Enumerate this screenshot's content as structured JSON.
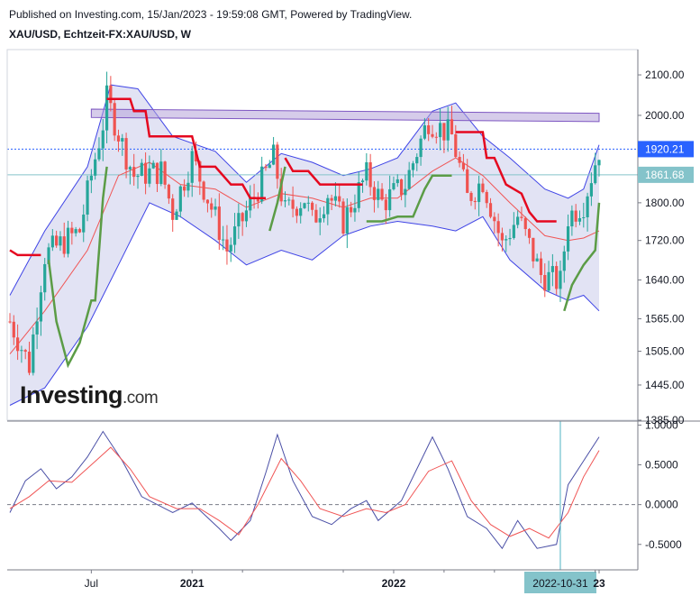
{
  "header": {
    "published": "Published on Investing.com, 15/Jan/2023 - 19:59:08 GMT, Powered by TradingView.",
    "symbol": "XAU/USD, Echtzeit-FX:XAU/USD, W"
  },
  "watermark": {
    "brand": "Investing",
    "domain": ".com"
  },
  "colors": {
    "bull": "#26a69a",
    "bear": "#ef5350",
    "supertrend_bear": "#e5081f",
    "supertrend_bull": "#5b9c46",
    "bb_band": "#3f44e6",
    "bb_fill": "#d8daf0",
    "ema": "#f05555",
    "osc_main": "#4a4fa6",
    "osc_signal": "#f05555",
    "channel": "#b4a2d9",
    "price_tag": "#2962ff",
    "line_tag": "#84c3ca"
  },
  "chart_data": [
    {
      "type": "candlestick",
      "title": "XAU/USD, Echtzeit-FX:XAU/USD, W",
      "scale": "log",
      "ylim": [
        1385,
        2165
      ],
      "y_ticks": [
        "2100.00",
        "2000.00",
        "1920.21",
        "1800.00",
        "1720.00",
        "1640.00",
        "1565.00",
        "1505.00",
        "1445.00",
        "1385.00"
      ],
      "x_ticks": [
        "Jul",
        "2021",
        "2022",
        "2022-10-31",
        "23"
      ],
      "x_start": "2020-02-10",
      "x_end": "2023-01-09",
      "ohlc_keypoints": [
        [
          "2020-02-10",
          1560
        ],
        [
          "2020-03-16",
          1480
        ],
        [
          "2020-04-13",
          1690
        ],
        [
          "2020-06-15",
          1740
        ],
        [
          "2020-07-27",
          1980
        ],
        [
          "2020-08-03",
          2040
        ],
        [
          "2020-08-31",
          1930
        ],
        [
          "2020-09-21",
          1860
        ],
        [
          "2020-11-09",
          1870
        ],
        [
          "2020-11-30",
          1780
        ],
        [
          "2021-01-04",
          1900
        ],
        [
          "2021-03-08",
          1700
        ],
        [
          "2021-04-12",
          1780
        ],
        [
          "2021-05-31",
          1900
        ],
        [
          "2021-06-21",
          1780
        ],
        [
          "2021-07-26",
          1810
        ],
        [
          "2021-08-09",
          1760
        ],
        [
          "2021-09-06",
          1820
        ],
        [
          "2021-10-04",
          1760
        ],
        [
          "2021-11-15",
          1860
        ],
        [
          "2021-12-13",
          1800
        ],
        [
          "2022-01-24",
          1840
        ],
        [
          "2022-03-07",
          1990
        ],
        [
          "2022-04-18",
          1950
        ],
        [
          "2022-05-16",
          1810
        ],
        [
          "2022-06-13",
          1850
        ],
        [
          "2022-07-18",
          1710
        ],
        [
          "2022-08-15",
          1770
        ],
        [
          "2022-09-26",
          1650
        ],
        [
          "2022-10-31",
          1635
        ],
        [
          "2022-11-14",
          1770
        ],
        [
          "2022-12-12",
          1800
        ],
        [
          "2023-01-09",
          1920
        ]
      ],
      "last_price": 1920.21,
      "horizontal_line": 1861.68,
      "channel": {
        "start": [
          "2020-07-06",
          2005
        ],
        "end": [
          "2023-01-09",
          1995
        ],
        "width": 20
      },
      "bollinger_upper": [
        [
          "2020-02-10",
          1610
        ],
        [
          "2020-04-13",
          1740
        ],
        [
          "2020-06-29",
          1880
        ],
        [
          "2020-08-10",
          2075
        ],
        [
          "2020-09-28",
          2065
        ],
        [
          "2020-11-30",
          1950
        ],
        [
          "2021-02-15",
          1915
        ],
        [
          "2021-04-12",
          1845
        ],
        [
          "2021-06-14",
          1910
        ],
        [
          "2021-08-09",
          1890
        ],
        [
          "2021-10-04",
          1860
        ],
        [
          "2021-11-22",
          1875
        ],
        [
          "2022-01-10",
          1900
        ],
        [
          "2022-03-14",
          2010
        ],
        [
          "2022-04-25",
          2030
        ],
        [
          "2022-06-13",
          1950
        ],
        [
          "2022-08-01",
          1900
        ],
        [
          "2022-10-03",
          1830
        ],
        [
          "2022-11-14",
          1810
        ],
        [
          "2022-12-12",
          1830
        ],
        [
          "2023-01-09",
          1930
        ]
      ],
      "bollinger_lower": [
        [
          "2020-02-10",
          1410
        ],
        [
          "2020-04-13",
          1440
        ],
        [
          "2020-06-29",
          1550
        ],
        [
          "2020-08-24",
          1670
        ],
        [
          "2020-10-19",
          1800
        ],
        [
          "2020-12-14",
          1770
        ],
        [
          "2021-02-15",
          1720
        ],
        [
          "2021-04-12",
          1670
        ],
        [
          "2021-06-14",
          1700
        ],
        [
          "2021-08-09",
          1680
        ],
        [
          "2021-10-04",
          1730
        ],
        [
          "2021-11-22",
          1750
        ],
        [
          "2022-01-10",
          1760
        ],
        [
          "2022-03-14",
          1750
        ],
        [
          "2022-04-25",
          1740
        ],
        [
          "2022-06-13",
          1770
        ],
        [
          "2022-08-01",
          1680
        ],
        [
          "2022-10-03",
          1620
        ],
        [
          "2022-11-14",
          1600
        ],
        [
          "2022-12-12",
          1610
        ],
        [
          "2023-01-09",
          1580
        ]
      ],
      "ema": [
        [
          "2020-02-10",
          1500
        ],
        [
          "2020-04-13",
          1580
        ],
        [
          "2020-06-29",
          1700
        ],
        [
          "2020-08-24",
          1860
        ],
        [
          "2020-10-19",
          1890
        ],
        [
          "2020-12-14",
          1840
        ],
        [
          "2021-02-15",
          1830
        ],
        [
          "2021-04-12",
          1790
        ],
        [
          "2021-06-14",
          1820
        ],
        [
          "2021-08-09",
          1810
        ],
        [
          "2021-10-04",
          1790
        ],
        [
          "2021-11-22",
          1810
        ],
        [
          "2022-01-10",
          1810
        ],
        [
          "2022-03-14",
          1870
        ],
        [
          "2022-04-25",
          1900
        ],
        [
          "2022-06-13",
          1860
        ],
        [
          "2022-08-01",
          1800
        ],
        [
          "2022-10-03",
          1730
        ],
        [
          "2022-11-14",
          1720
        ],
        [
          "2022-12-12",
          1725
        ],
        [
          "2023-01-09",
          1740
        ]
      ],
      "supertrend_bear": [
        [
          [
            "2020-02-10",
            1700
          ],
          [
            "2020-02-24",
            1690
          ],
          [
            "2020-04-06",
            1690
          ]
        ],
        [
          [
            "2020-08-03",
            2040
          ],
          [
            "2020-08-17",
            2040
          ],
          [
            "2020-09-14",
            2040
          ],
          [
            "2020-09-21",
            2010
          ],
          [
            "2020-10-12",
            2010
          ],
          [
            "2020-10-19",
            1950
          ],
          [
            "2020-12-14",
            1950
          ],
          [
            "2020-12-21",
            1950
          ],
          [
            "2021-01-04",
            1950
          ],
          [
            "2021-01-18",
            1880
          ],
          [
            "2021-02-15",
            1880
          ],
          [
            "2021-03-15",
            1840
          ],
          [
            "2021-04-05",
            1840
          ],
          [
            "2021-04-19",
            1810
          ],
          [
            "2021-05-17",
            1810
          ]
        ],
        [
          [
            "2021-06-21",
            1900
          ],
          [
            "2021-07-05",
            1870
          ],
          [
            "2021-08-02",
            1870
          ],
          [
            "2021-08-23",
            1840
          ],
          [
            "2021-09-13",
            1840
          ],
          [
            "2021-10-04",
            1840
          ],
          [
            "2021-11-08",
            1840
          ]
        ],
        [
          [
            "2022-04-25",
            1960
          ],
          [
            "2022-05-02",
            1960
          ],
          [
            "2022-06-13",
            1960
          ],
          [
            "2022-06-20",
            1900
          ],
          [
            "2022-07-04",
            1900
          ],
          [
            "2022-07-25",
            1840
          ],
          [
            "2022-08-22",
            1820
          ],
          [
            "2022-09-05",
            1780
          ],
          [
            "2022-09-19",
            1760
          ],
          [
            "2022-10-10",
            1760
          ],
          [
            "2022-10-24",
            1760
          ]
        ]
      ],
      "supertrend_bull": [
        [
          [
            "2020-04-20",
            1680
          ],
          [
            "2020-05-04",
            1560
          ],
          [
            "2020-05-25",
            1480
          ],
          [
            "2020-06-15",
            1520
          ],
          [
            "2020-07-06",
            1600
          ],
          [
            "2020-07-13",
            1600
          ],
          [
            "2020-07-20",
            1700
          ],
          [
            "2020-07-27",
            1810
          ],
          [
            "2020-08-03",
            1880
          ]
        ],
        [
          [
            "2021-05-24",
            1740
          ],
          [
            "2021-06-07",
            1800
          ],
          [
            "2021-06-14",
            1840
          ],
          [
            "2021-06-21",
            1880
          ]
        ],
        [
          [
            "2021-11-15",
            1760
          ],
          [
            "2021-12-13",
            1760
          ],
          [
            "2022-01-10",
            1770
          ],
          [
            "2022-02-07",
            1770
          ],
          [
            "2022-02-28",
            1830
          ],
          [
            "2022-03-14",
            1860
          ],
          [
            "2022-04-18",
            1860
          ]
        ],
        [
          [
            "2022-11-07",
            1580
          ],
          [
            "2022-11-21",
            1630
          ],
          [
            "2022-12-12",
            1670
          ],
          [
            "2023-01-02",
            1700
          ],
          [
            "2023-01-09",
            1800
          ]
        ]
      ]
    },
    {
      "type": "line",
      "title": "",
      "ylim": [
        -0.82,
        1.05
      ],
      "y_ticks": [
        "1.0000",
        "0.5000",
        "0.0000",
        "-0.5000"
      ],
      "zero_line": 0,
      "cursor_date": "2022-10-31",
      "series": [
        {
          "values": [
            [
              "2020-02-10",
              -0.1
            ],
            [
              "2020-03-09",
              0.3
            ],
            [
              "2020-04-06",
              0.45
            ],
            [
              "2020-05-04",
              0.2
            ],
            [
              "2020-06-01",
              0.35
            ],
            [
              "2020-06-29",
              0.6
            ],
            [
              "2020-07-27",
              0.92
            ],
            [
              "2020-08-31",
              0.55
            ],
            [
              "2020-10-05",
              0.1
            ],
            [
              "2020-11-30",
              -0.1
            ],
            [
              "2021-01-04",
              0.02
            ],
            [
              "2021-02-22",
              -0.3
            ],
            [
              "2021-03-15",
              -0.45
            ],
            [
              "2021-04-19",
              -0.2
            ],
            [
              "2021-05-17",
              0.4
            ],
            [
              "2021-06-07",
              0.88
            ],
            [
              "2021-07-05",
              0.3
            ],
            [
              "2021-08-09",
              -0.15
            ],
            [
              "2021-09-13",
              -0.25
            ],
            [
              "2021-10-18",
              -0.05
            ],
            [
              "2021-11-15",
              0.05
            ],
            [
              "2021-12-06",
              -0.2
            ],
            [
              "2022-01-17",
              0.05
            ],
            [
              "2022-02-21",
              0.55
            ],
            [
              "2022-03-14",
              0.85
            ],
            [
              "2022-04-11",
              0.45
            ],
            [
              "2022-05-16",
              -0.15
            ],
            [
              "2022-06-20",
              -0.3
            ],
            [
              "2022-07-18",
              -0.55
            ],
            [
              "2022-08-15",
              -0.2
            ],
            [
              "2022-09-19",
              -0.55
            ],
            [
              "2022-10-24",
              -0.5
            ],
            [
              "2022-11-14",
              0.25
            ],
            [
              "2022-12-12",
              0.55
            ],
            [
              "2023-01-09",
              0.85
            ]
          ]
        },
        {
          "values": [
            [
              "2020-02-10",
              -0.05
            ],
            [
              "2020-03-16",
              0.1
            ],
            [
              "2020-04-20",
              0.3
            ],
            [
              "2020-06-01",
              0.28
            ],
            [
              "2020-07-06",
              0.5
            ],
            [
              "2020-08-10",
              0.72
            ],
            [
              "2020-09-14",
              0.45
            ],
            [
              "2020-10-19",
              0.1
            ],
            [
              "2020-12-07",
              -0.05
            ],
            [
              "2021-01-18",
              -0.05
            ],
            [
              "2021-02-22",
              -0.2
            ],
            [
              "2021-03-29",
              -0.38
            ],
            [
              "2021-05-03",
              0.0
            ],
            [
              "2021-06-14",
              0.58
            ],
            [
              "2021-07-19",
              0.3
            ],
            [
              "2021-08-23",
              -0.05
            ],
            [
              "2021-10-04",
              -0.15
            ],
            [
              "2021-11-15",
              -0.05
            ],
            [
              "2021-12-20",
              -0.1
            ],
            [
              "2022-01-24",
              0.0
            ],
            [
              "2022-03-07",
              0.42
            ],
            [
              "2022-04-18",
              0.55
            ],
            [
              "2022-05-23",
              0.05
            ],
            [
              "2022-06-27",
              -0.25
            ],
            [
              "2022-08-01",
              -0.4
            ],
            [
              "2022-09-05",
              -0.3
            ],
            [
              "2022-10-10",
              -0.42
            ],
            [
              "2022-11-14",
              -0.1
            ],
            [
              "2022-12-12",
              0.35
            ],
            [
              "2023-01-09",
              0.68
            ]
          ]
        }
      ]
    }
  ]
}
